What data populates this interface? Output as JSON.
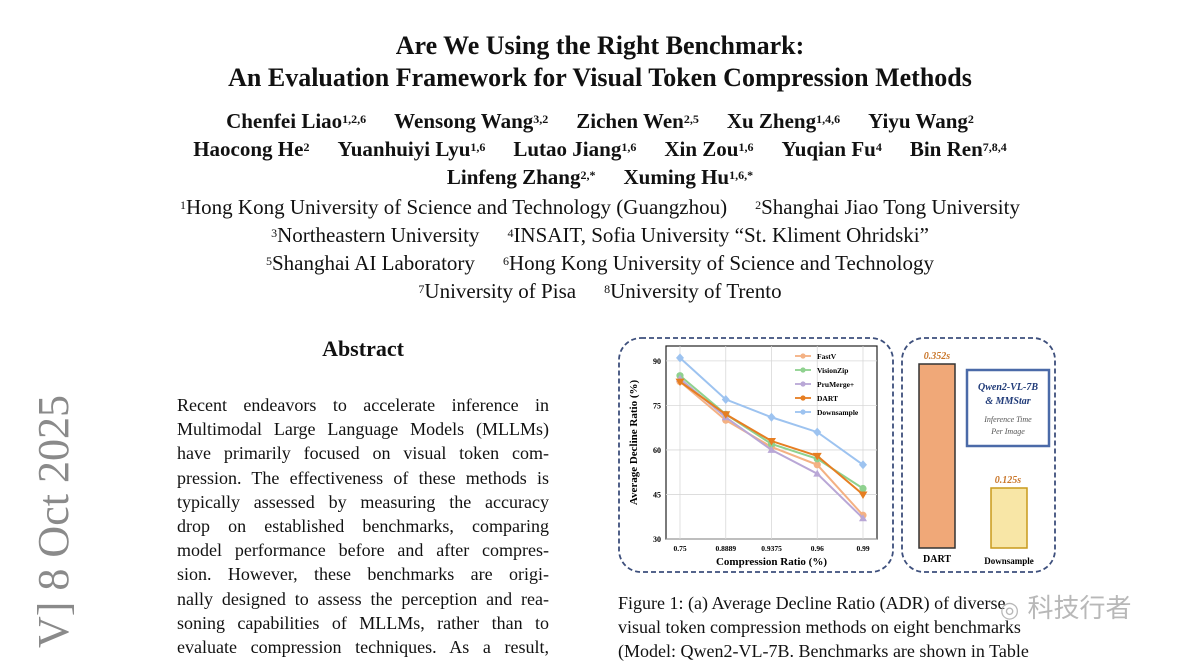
{
  "title": {
    "line1": "Are We Using the Right Benchmark:",
    "line2": "An Evaluation Framework for Visual Token Compression Methods"
  },
  "authors": {
    "row1": [
      {
        "name": "Chenfei Liao",
        "sup": "1,2,6"
      },
      {
        "name": "Wensong Wang",
        "sup": "3,2"
      },
      {
        "name": "Zichen Wen",
        "sup": "2,5"
      },
      {
        "name": "Xu Zheng",
        "sup": "1,4,6"
      },
      {
        "name": "Yiyu Wang",
        "sup": "2"
      }
    ],
    "row2": [
      {
        "name": "Haocong He",
        "sup": "2"
      },
      {
        "name": "Yuanhuiyi Lyu",
        "sup": "1,6"
      },
      {
        "name": "Lutao Jiang",
        "sup": "1,6"
      },
      {
        "name": "Xin Zou",
        "sup": "1,6"
      },
      {
        "name": "Yuqian Fu",
        "sup": "4"
      },
      {
        "name": "Bin Ren",
        "sup": "7,8,4"
      }
    ],
    "row3": [
      {
        "name": "Linfeng Zhang",
        "sup": "2,*"
      },
      {
        "name": "Xuming Hu",
        "sup": "1,6,*"
      }
    ]
  },
  "affiliations": {
    "row1": [
      {
        "sup": "1",
        "text": "Hong Kong University of Science and Technology (Guangzhou)"
      },
      {
        "sup": "2",
        "text": "Shanghai Jiao Tong University"
      }
    ],
    "row2": [
      {
        "sup": "3",
        "text": "Northeastern University"
      },
      {
        "sup": "4",
        "text": "INSAIT, Sofia University “St. Kliment Ohridski”"
      }
    ],
    "row3": [
      {
        "sup": "5",
        "text": "Shanghai AI Laboratory"
      },
      {
        "sup": "6",
        "text": "Hong Kong University of Science and Technology"
      }
    ],
    "row4": [
      {
        "sup": "7",
        "text": "University of Pisa"
      },
      {
        "sup": "8",
        "text": "University of Trento"
      }
    ]
  },
  "arxiv_stamp": "V]  8 Oct 2025",
  "abstract": {
    "heading": "Abstract",
    "lines": [
      "Recent endeavors to accelerate inference in",
      "Multimodal Large Language Models (MLLMs)",
      "have primarily focused on visual token com-",
      "pression. The effectiveness of these methods is",
      "typically assessed by measuring the accuracy",
      "drop on established benchmarks, comparing",
      "model performance before and after compres-",
      "sion.  However, these benchmarks are origi-",
      "nally designed to assess the perception and rea-",
      "soning capabilities of MLLMs, rather than to",
      "evaluate compression techniques.  As a result,"
    ]
  },
  "figure": {
    "caption_lines": [
      "Figure 1:  (a) Average Decline Ratio (ADR) of diverse",
      "visual token compression methods on eight benchmarks",
      "(Model: Qwen2-VL-7B. Benchmarks are shown in Table"
    ],
    "colors": {
      "FastV": "#f4b183",
      "VisionZip": "#8fd18f",
      "PruMerge+": "#b9a7d6",
      "DART": "#e67e22",
      "Downsample": "#9dc3f0",
      "frame": "#3d4f7c",
      "bar_dart": "#f0a878",
      "bar_down": "#f8e6a6",
      "bar_label": "#c9762a"
    },
    "bar_panel": {
      "dart_label": "DART",
      "dart_time": "0.352s",
      "down_label": "Downsample",
      "down_time": "0.125s",
      "box_line1": "Qwen2-VL-7B",
      "box_line2": "& MMStar",
      "box_line3": "Inference Time",
      "box_line4": "Per Image"
    }
  },
  "chart_data": {
    "type": "line",
    "xlabel": "Compression Ratio (%)",
    "ylabel": "Average Decline Ratio (%)",
    "x": [
      "0.75",
      "0.8889",
      "0.9375",
      "0.96",
      "0.99"
    ],
    "ylim": [
      30,
      100
    ],
    "yticks": [
      30,
      45,
      60,
      75,
      90
    ],
    "grid": true,
    "legend_position": "top-right",
    "series": [
      {
        "name": "FastV",
        "values": [
          83,
          70,
          61,
          55,
          38
        ]
      },
      {
        "name": "VisionZip",
        "values": [
          85,
          72,
          62,
          57,
          47
        ]
      },
      {
        "name": "PruMerge+",
        "values": [
          84,
          71,
          60,
          52,
          37
        ]
      },
      {
        "name": "DART",
        "values": [
          83,
          72,
          63,
          58,
          45
        ]
      },
      {
        "name": "Downsample",
        "values": [
          91,
          77,
          71,
          66,
          55
        ]
      }
    ]
  },
  "watermark": "科技行者"
}
